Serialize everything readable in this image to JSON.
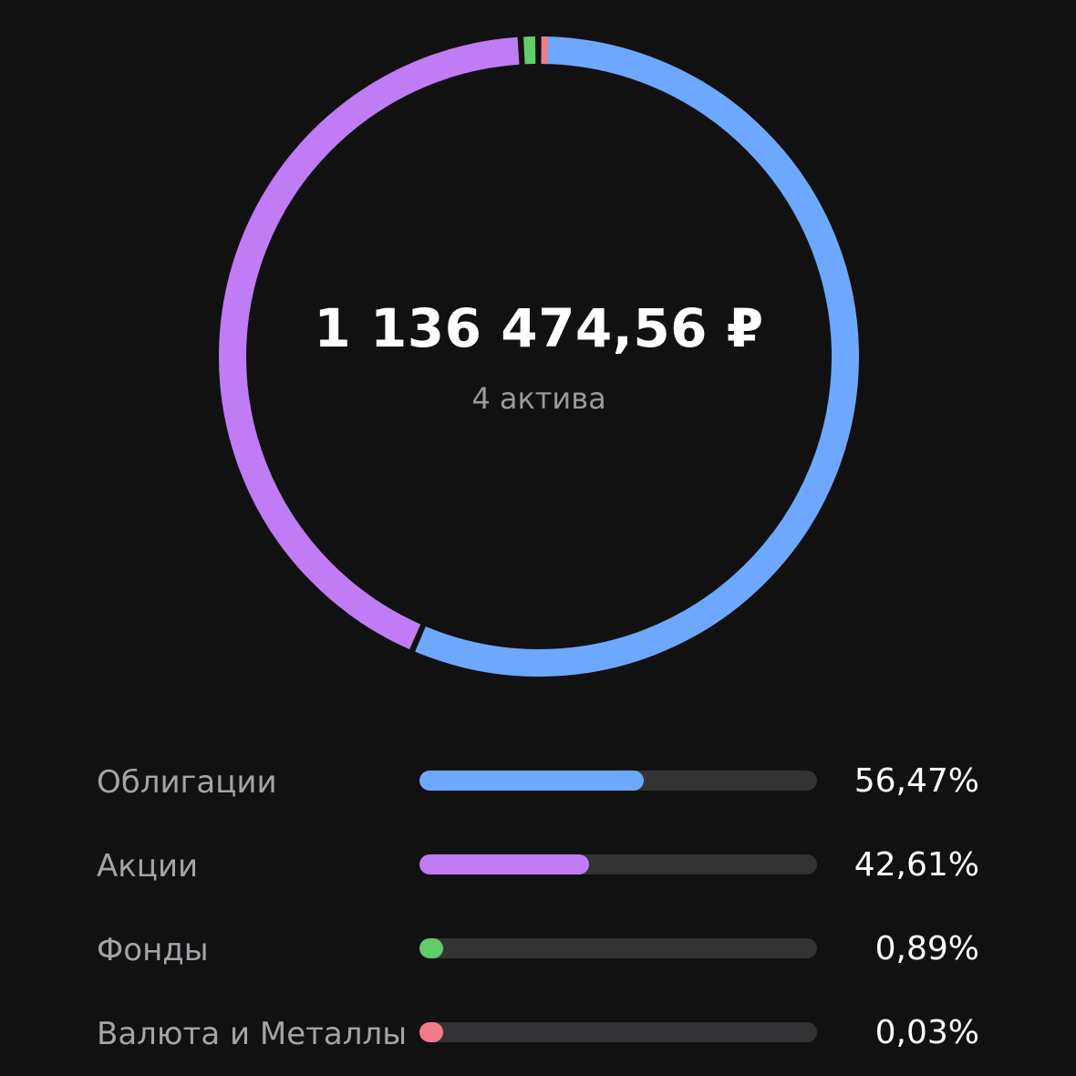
{
  "summary": {
    "total": "1 136 474,56 ₽",
    "assets_count": "4 актива"
  },
  "colors": {
    "background": "#111112",
    "track": "#333335",
    "bonds": "#6ea8fe",
    "stocks": "#c07cf5",
    "funds": "#5fcd6a",
    "currency_metals": "#f27b87"
  },
  "chart_data": {
    "type": "pie",
    "categories": [
      "Облигации",
      "Акции",
      "Фонды",
      "Валюта и Металлы"
    ],
    "values": [
      56.47,
      42.61,
      0.89,
      0.03
    ],
    "unit": "%"
  },
  "allocation": [
    {
      "label": "Облигации",
      "percent_text": "56,47%",
      "percent": 56.47,
      "color": "#6ea8fe"
    },
    {
      "label": "Акции",
      "percent_text": "42,61%",
      "percent": 42.61,
      "color": "#c07cf5"
    },
    {
      "label": "Фонды",
      "percent_text": "0,89%",
      "percent": 0.89,
      "color": "#5fcd6a"
    },
    {
      "label": "Валюта и Металлы",
      "percent_text": "0,03%",
      "percent": 0.03,
      "color": "#f27b87"
    }
  ]
}
